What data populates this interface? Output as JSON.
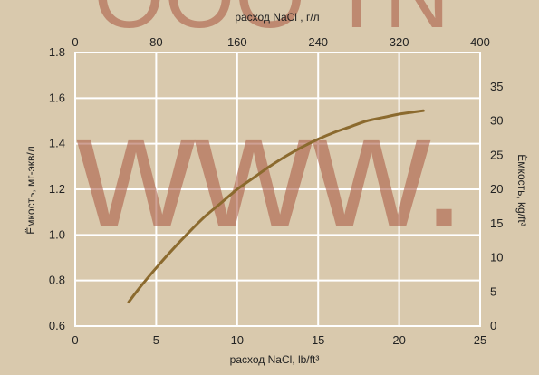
{
  "chart_data": {
    "type": "line",
    "x_bottom": {
      "label": "расход NaCl, lb/ft³",
      "range": [
        0,
        25
      ],
      "ticks": [
        "0",
        "5",
        "10",
        "15",
        "20",
        "25"
      ]
    },
    "x_top": {
      "label": "расход NaCl , г/л",
      "range": [
        0,
        400
      ],
      "ticks": [
        "0",
        "80",
        "160",
        "240",
        "320",
        "400"
      ]
    },
    "y_left": {
      "label": "Ёмкость, мг-экв/л",
      "range": [
        0.6,
        1.8
      ],
      "ticks": [
        "0.6",
        "0.8",
        "1.0",
        "1.2",
        "1.4",
        "1.6",
        "1.8"
      ]
    },
    "y_right": {
      "label": "Ёмкость, kg/ft³",
      "range": [
        0,
        40
      ],
      "ticks": [
        "0",
        "5",
        "10",
        "15",
        "20",
        "25",
        "30",
        "35"
      ]
    },
    "grid": true,
    "series": [
      {
        "color": "#8b6a2e",
        "x": [
          3.3,
          4.0,
          5.0,
          6.0,
          7.0,
          8.0,
          9.0,
          10.0,
          11.0,
          12.0,
          13.0,
          14.0,
          15.0,
          16.0,
          17.0,
          18.0,
          19.0,
          20.0,
          21.0,
          21.5
        ],
        "y": [
          0.705,
          0.77,
          0.855,
          0.935,
          1.01,
          1.08,
          1.14,
          1.2,
          1.25,
          1.3,
          1.345,
          1.385,
          1.42,
          1.45,
          1.475,
          1.5,
          1.515,
          1.53,
          1.54,
          1.545
        ]
      }
    ]
  },
  "colors": {
    "background": "#d9c9ad",
    "grid": "#ffffff",
    "line": "#8b6a2e",
    "watermark": "#a8563f"
  },
  "watermark": {
    "text_top": "OOO TN",
    "text_main": "www."
  }
}
